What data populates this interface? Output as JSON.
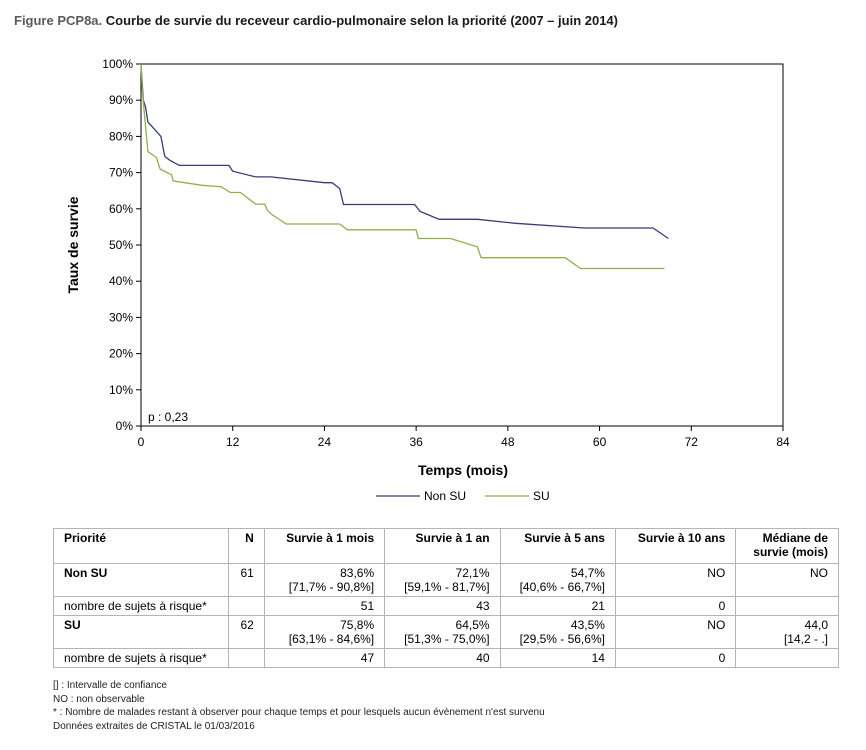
{
  "title": {
    "label": "Figure PCP8a.",
    "text": "Courbe de survie du receveur cardio-pulmonaire selon la priorité (2007 – juin 2014)"
  },
  "chart_data": {
    "type": "line",
    "step": true,
    "xlabel": "Temps (mois)",
    "ylabel": "Taux de survie",
    "xlim": [
      0,
      84
    ],
    "ylim": [
      0,
      100
    ],
    "xticks": [
      "0",
      "12",
      "24",
      "36",
      "48",
      "60",
      "72",
      "84"
    ],
    "yticks": [
      "0%",
      "10%",
      "20%",
      "30%",
      "40%",
      "50%",
      "60%",
      "70%",
      "80%",
      "90%",
      "100%"
    ],
    "grid": false,
    "legend_position": "bottom",
    "annotation": "p : 0,23",
    "series": [
      {
        "name": "Non SU",
        "color": "#3b3a7a",
        "points": [
          [
            0,
            100
          ],
          [
            0.3,
            90
          ],
          [
            0.6,
            88
          ],
          [
            0.9,
            84
          ],
          [
            2.6,
            80
          ],
          [
            3.1,
            74.5
          ],
          [
            3.7,
            73.5
          ],
          [
            5,
            72
          ],
          [
            11.5,
            72
          ],
          [
            12,
            70.4
          ],
          [
            15,
            68.8
          ],
          [
            17,
            68.8
          ],
          [
            24,
            67.2
          ],
          [
            25,
            67.2
          ],
          [
            26,
            65.6
          ],
          [
            26.5,
            61.2
          ],
          [
            28,
            61.2
          ],
          [
            35.8,
            61.2
          ],
          [
            36.5,
            59.3
          ],
          [
            39,
            57.1
          ],
          [
            44,
            57.1
          ],
          [
            49,
            56
          ],
          [
            58,
            54.7
          ],
          [
            67,
            54.7
          ],
          [
            69,
            51.8
          ]
        ]
      },
      {
        "name": "SU",
        "color": "#8fb04a",
        "points": [
          [
            0,
            100
          ],
          [
            0.2,
            92
          ],
          [
            0.5,
            85
          ],
          [
            0.9,
            75.8
          ],
          [
            2,
            74.2
          ],
          [
            2.5,
            71
          ],
          [
            4,
            69.4
          ],
          [
            4.2,
            67.7
          ],
          [
            8,
            66.5
          ],
          [
            10.5,
            66.1
          ],
          [
            11.7,
            64.5
          ],
          [
            13,
            64.5
          ],
          [
            14,
            62.9
          ],
          [
            15,
            61.3
          ],
          [
            16.2,
            61.3
          ],
          [
            16.5,
            59.7
          ],
          [
            17,
            58.6
          ],
          [
            19,
            55.8
          ],
          [
            26,
            55.8
          ],
          [
            27,
            54.2
          ],
          [
            36,
            54.2
          ],
          [
            36.3,
            51.8
          ],
          [
            40.5,
            51.8
          ],
          [
            44,
            49.5
          ],
          [
            44.5,
            46.5
          ],
          [
            55.5,
            46.5
          ],
          [
            57.5,
            43.5
          ],
          [
            68.5,
            43.5
          ]
        ]
      }
    ]
  },
  "table": {
    "headers": [
      "Priorité",
      "N",
      "Survie à 1 mois",
      "Survie à 1 an",
      "Survie à 5 ans",
      "Survie à 10 ans",
      "Médiane de survie (mois)"
    ],
    "rows": [
      {
        "group": "Non SU",
        "n": "61",
        "m1": {
          "value": "83,6%",
          "ci": "[71,7% - 90,8%]"
        },
        "y1": {
          "value": "72,1%",
          "ci": "[59,1% - 81,7%]"
        },
        "y5": {
          "value": "54,7%",
          "ci": "[40,6% - 66,7%]"
        },
        "y10": {
          "value": "NO",
          "ci": ""
        },
        "median": {
          "value": "NO",
          "ci": ""
        },
        "at_risk_label": "nombre de sujets à risque*",
        "at_risk": [
          "51",
          "43",
          "21",
          "0"
        ]
      },
      {
        "group": "SU",
        "n": "62",
        "m1": {
          "value": "75,8%",
          "ci": "[63,1% - 84,6%]"
        },
        "y1": {
          "value": "64,5%",
          "ci": "[51,3% - 75,0%]"
        },
        "y5": {
          "value": "43,5%",
          "ci": "[29,5% - 56,6%]"
        },
        "y10": {
          "value": "NO",
          "ci": ""
        },
        "median": {
          "value": "44,0",
          "ci": "[14,2 - .]"
        },
        "at_risk_label": "nombre de sujets à risque*",
        "at_risk": [
          "47",
          "40",
          "14",
          "0"
        ]
      }
    ]
  },
  "notes": [
    "[] : Intervalle de confiance",
    "NO : non observable",
    "* : Nombre de malades restant à observer pour chaque temps et pour lesquels aucun évènement n'est survenu",
    "Données extraites de CRISTAL le 01/03/2016"
  ]
}
